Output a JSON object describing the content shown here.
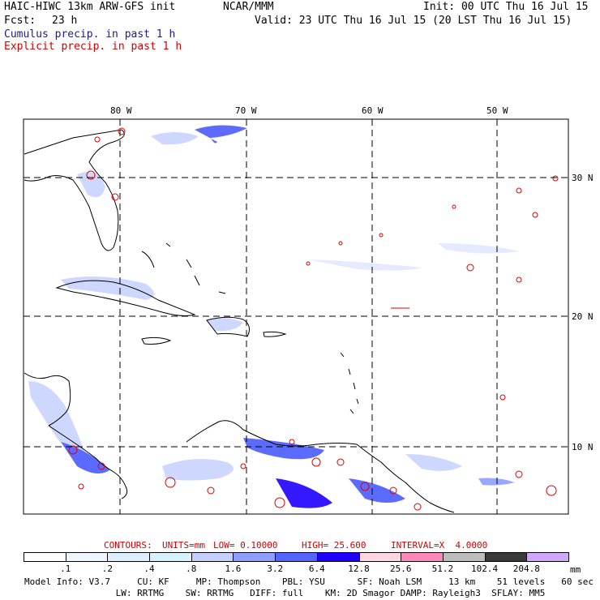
{
  "header": {
    "title_left": "HAIC-HIWC 13km ARW-GFS init",
    "org": "NCAR/MMM",
    "init": "Init: 00 UTC Thu 16 Jul 15",
    "fcst_label": "Fcst:",
    "fcst_value": "23 h",
    "valid": "Valid: 23 UTC Thu 16 Jul 15 (20 LST Thu 16 Jul 15)",
    "legend_cumulus": "Cumulus precip. in past 1 h",
    "legend_explicit": "Explicit precip. in past 1 h"
  },
  "map": {
    "lon_labels": [
      "80 W",
      "70 W",
      "60 W",
      "50 W"
    ],
    "lat_labels": [
      "30 N",
      "20 N",
      "10 N"
    ],
    "colors": {
      "coast": "#000000",
      "grid": "#000000",
      "cumulus": "#3d4dff",
      "explicit": "#e00000"
    }
  },
  "contours_info": {
    "contours": "CONTOURS:",
    "units": "UNITS=mm",
    "low": "LOW= 0.10000",
    "high": "HIGH= 25.600",
    "interval": "INTERVAL=X  4.0000"
  },
  "colorbar": {
    "labels": [
      ".1",
      ".2",
      ".4",
      ".8",
      "1.6",
      "3.2",
      "6.4",
      "12.8",
      "25.6",
      "51.2",
      "102.4",
      "204.8"
    ],
    "unit": "mm",
    "colors": [
      "#ffffff",
      "#f0f6ff",
      "#ddeeff",
      "#d7f2fb",
      "#c6d0ff",
      "#8f9fff",
      "#5465ff",
      "#1f00ff",
      "#ffd7e0",
      "#ff88b8",
      "#bdbdbd",
      "#3a3a3a",
      "#d2a8ff"
    ]
  },
  "footer": {
    "line1": "Model Info: V3.7     CU: KF     MP: Thompson    PBL: YSU      SF: Noah LSM     13 km    51 levels   60 sec",
    "line2": "                 LW: RRTMG    SW: RRTMG   DIFF: full    KM: 2D Smagor DAMP: Rayleigh3  SFLAY: MM5"
  }
}
